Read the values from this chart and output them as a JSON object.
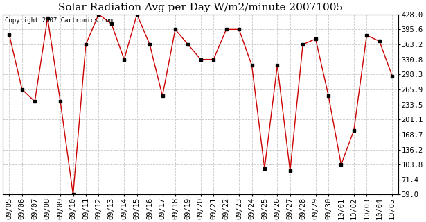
{
  "title": "Solar Radiation Avg per Day W/m2/minute 20071005",
  "copyright": "Copyright 2007 Cartronics.com",
  "labels": [
    "09/05",
    "09/06",
    "09/07",
    "09/08",
    "09/09",
    "09/10",
    "09/11",
    "09/12",
    "09/13",
    "09/14",
    "09/15",
    "09/16",
    "09/17",
    "09/18",
    "09/19",
    "09/20",
    "09/21",
    "09/22",
    "09/23",
    "09/24",
    "09/25",
    "09/26",
    "09/27",
    "09/28",
    "09/29",
    "09/30",
    "10/01",
    "10/02",
    "10/03",
    "10/04",
    "10/05"
  ],
  "values": [
    384.0,
    265.9,
    240.0,
    420.0,
    240.0,
    39.0,
    363.2,
    428.0,
    408.0,
    330.8,
    428.0,
    363.2,
    252.0,
    395.6,
    363.2,
    330.8,
    330.8,
    395.6,
    395.6,
    318.0,
    95.5,
    318.0,
    90.0,
    363.2,
    375.0,
    253.0,
    103.8,
    178.0,
    383.0,
    370.0,
    295.0
  ],
  "line_color": "#cc0000",
  "marker": "s",
  "marker_size": 3,
  "marker_color": "#000000",
  "bg_color": "#ffffff",
  "plot_bg_color": "#ffffff",
  "grid_color": "#c8c8c8",
  "title_fontsize": 11,
  "copyright_fontsize": 6.5,
  "tick_fontsize": 7.5,
  "ylim": [
    39.0,
    428.0
  ],
  "yticks": [
    39.0,
    71.4,
    103.8,
    136.2,
    168.7,
    201.1,
    233.5,
    265.9,
    298.3,
    330.8,
    363.2,
    395.6,
    428.0
  ]
}
